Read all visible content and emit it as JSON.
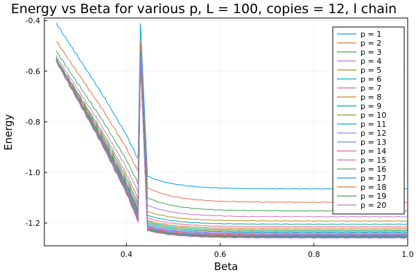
{
  "chart_data": {
    "type": "line",
    "title": "Energy vs Beta for various p, L = 100, copies = 12, l chain",
    "xlabel": "Beta",
    "ylabel": "Energy",
    "xlim": [
      0.225,
      1.0
    ],
    "ylim": [
      -1.29,
      -0.39
    ],
    "xticks": [
      "0.4",
      "0.6",
      "0.8",
      "1.0"
    ],
    "yticks": [
      "-0.4",
      "-0.6",
      "-0.8",
      "-1.0",
      "-1.2"
    ],
    "grid": true,
    "legend_position": "top-right",
    "colors": [
      "#009AFA",
      "#E36F47",
      "#3EA44E",
      "#C371D2",
      "#AC8E18",
      "#00AAAE",
      "#ED5E93",
      "#C68225",
      "#00A98D",
      "#8E971E",
      "#00A9CD",
      "#9B7FE9",
      "#618DF6",
      "#F06180",
      "#DD64B5",
      "#6B9D59",
      "#009AFA",
      "#E36F47",
      "#3EA44E",
      "#C371D2"
    ],
    "series": [
      {
        "name": "p = 1",
        "start": -0.41,
        "plateau": -1.065,
        "after": -1.015,
        "drop": 0.14
      },
      {
        "name": "p = 2",
        "start": -0.48,
        "plateau": -1.118,
        "after": -1.06,
        "drop": 0.13
      },
      {
        "name": "p = 3",
        "start": -0.52,
        "plateau": -1.152,
        "after": -1.1,
        "drop": 0.11
      },
      {
        "name": "p = 4",
        "start": -0.54,
        "plateau": -1.175,
        "after": -1.13,
        "drop": 0.1
      },
      {
        "name": "p = 5",
        "start": -0.55,
        "plateau": -1.192,
        "after": -1.155,
        "drop": 0.09
      },
      {
        "name": "p = 6",
        "start": -0.55,
        "plateau": -1.205,
        "after": -1.17,
        "drop": 0.08
      },
      {
        "name": "p = 7",
        "start": -0.555,
        "plateau": -1.215,
        "after": -1.18,
        "drop": 0.075
      },
      {
        "name": "p = 8",
        "start": -0.555,
        "plateau": -1.222,
        "after": -1.19,
        "drop": 0.07
      },
      {
        "name": "p = 9",
        "start": -0.56,
        "plateau": -1.228,
        "after": -1.195,
        "drop": 0.065
      },
      {
        "name": "p = 10",
        "start": -0.56,
        "plateau": -1.233,
        "after": -1.2,
        "drop": 0.06
      },
      {
        "name": "p = 11",
        "start": -0.56,
        "plateau": -1.237,
        "after": -1.205,
        "drop": 0.055
      },
      {
        "name": "p = 12",
        "start": -0.56,
        "plateau": -1.241,
        "after": -1.21,
        "drop": 0.05
      },
      {
        "name": "p = 13",
        "start": -0.56,
        "plateau": -1.244,
        "after": -1.213,
        "drop": 0.05
      },
      {
        "name": "p = 14",
        "start": -0.56,
        "plateau": -1.247,
        "after": -1.216,
        "drop": 0.045
      },
      {
        "name": "p = 15",
        "start": -0.56,
        "plateau": -1.249,
        "after": -1.219,
        "drop": 0.045
      },
      {
        "name": "p = 16",
        "start": -0.56,
        "plateau": -1.251,
        "after": -1.222,
        "drop": 0.04
      },
      {
        "name": "p = 17",
        "start": -0.56,
        "plateau": -1.253,
        "after": -1.224,
        "drop": 0.04
      },
      {
        "name": "p = 18",
        "start": -0.56,
        "plateau": -1.255,
        "after": -1.226,
        "drop": 0.04
      },
      {
        "name": "p = 19",
        "start": -0.56,
        "plateau": -1.257,
        "after": -1.228,
        "drop": 0.035
      },
      {
        "name": "p = 20",
        "start": -0.56,
        "plateau": -1.259,
        "after": -1.23,
        "drop": 0.035
      }
    ]
  }
}
